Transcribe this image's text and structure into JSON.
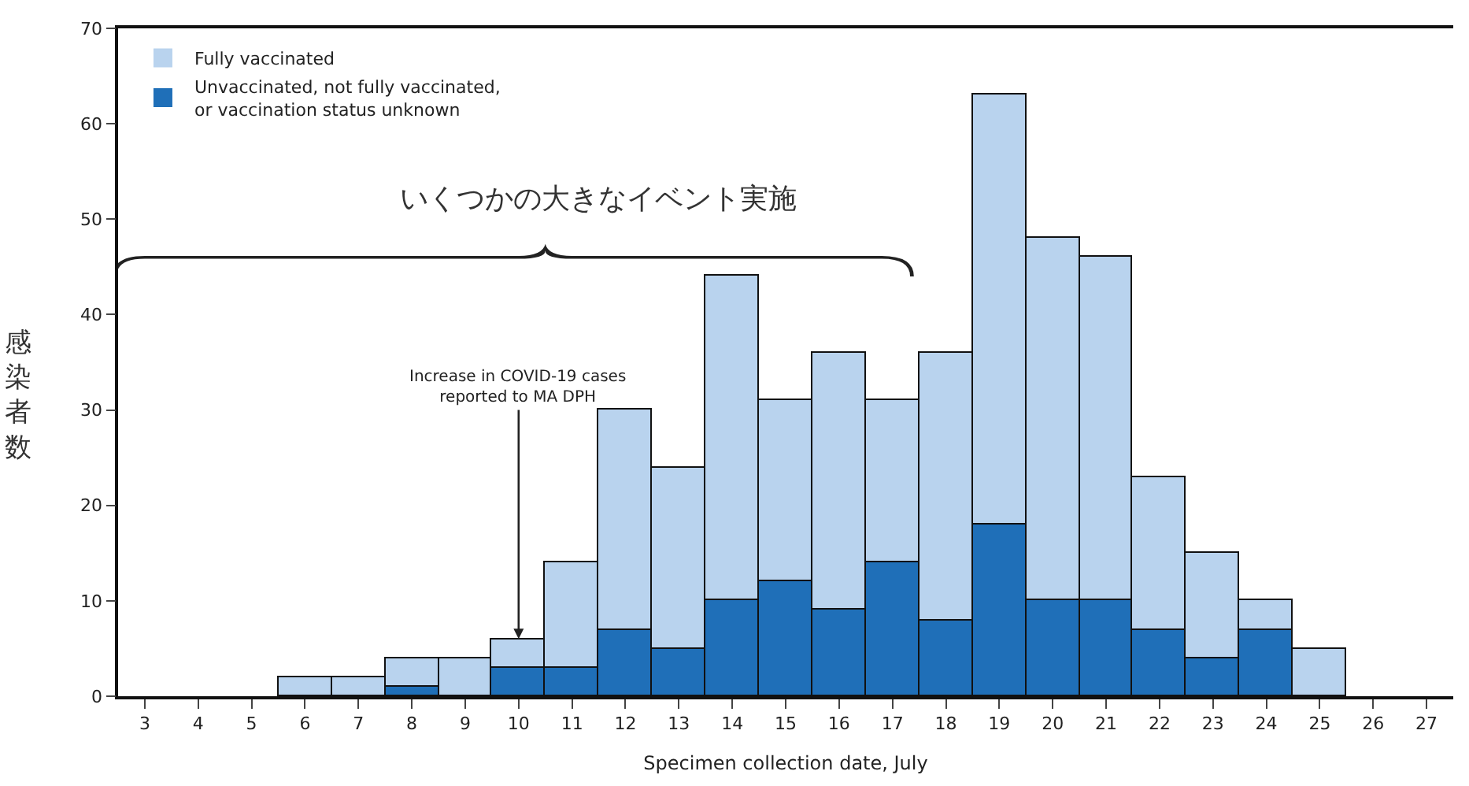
{
  "chart_data": {
    "type": "bar",
    "stacked": true,
    "xlabel": "Specimen collection date, July",
    "ylabel": "感染者数",
    "categories": [
      "3",
      "4",
      "5",
      "6",
      "7",
      "8",
      "9",
      "10",
      "11",
      "12",
      "13",
      "14",
      "15",
      "16",
      "17",
      "18",
      "19",
      "20",
      "21",
      "22",
      "23",
      "24",
      "25",
      "26",
      "27"
    ],
    "series": [
      {
        "name": "Unvaccinated, not fully vaccinated,\nor vaccination status unknown",
        "color": "#1f6fb8",
        "values": [
          0,
          0,
          0,
          0,
          0,
          1,
          0,
          3,
          3,
          7,
          5,
          10,
          12,
          9,
          14,
          8,
          18,
          10,
          10,
          7,
          4,
          7,
          0,
          0,
          0
        ]
      },
      {
        "name": "Fully vaccinated",
        "color": "#b9d3ee",
        "values": [
          0,
          0,
          0,
          2,
          2,
          3,
          4,
          3,
          11,
          23,
          19,
          34,
          19,
          27,
          17,
          28,
          45,
          38,
          36,
          16,
          11,
          3,
          5,
          0,
          0
        ]
      }
    ],
    "ylim": [
      0,
      70
    ],
    "yticks": [
      0,
      10,
      20,
      30,
      40,
      50,
      60,
      70
    ],
    "grid": false,
    "legend": "top left",
    "annotations": [
      "いくつかの大きなイベント実施",
      {
        "text": "Increase in COVID-19 cases\nreported to MA DPH",
        "x": "10",
        "y": 6
      }
    ]
  }
}
